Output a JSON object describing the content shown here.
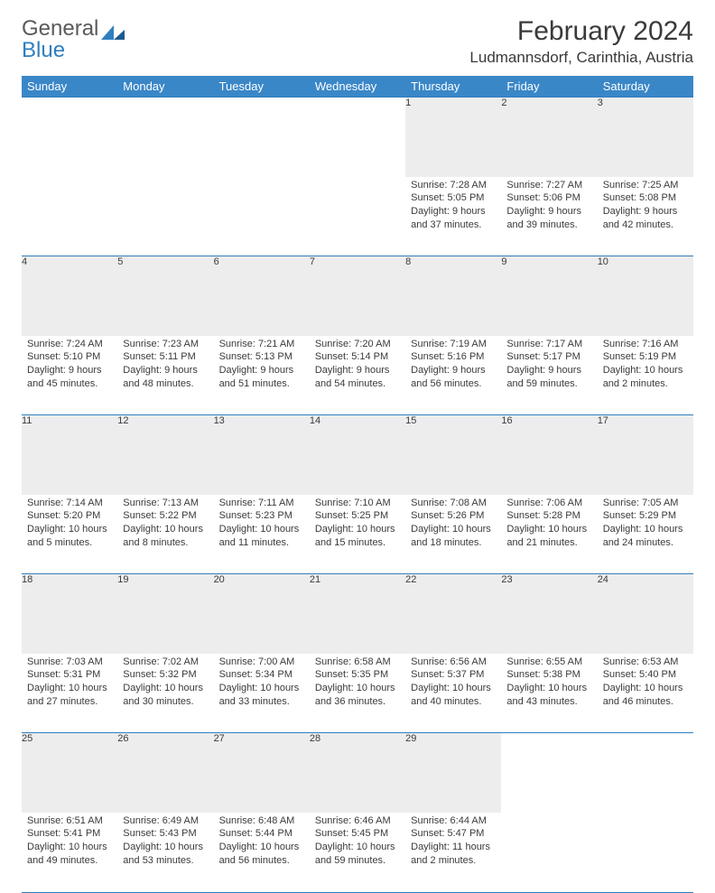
{
  "logo": {
    "text1": "General",
    "text2": "Blue",
    "shape_color": "#2f7fbf"
  },
  "title": "February 2024",
  "location": "Ludmannsdorf, Carinthia, Austria",
  "colors": {
    "header_bg": "#3a87c8",
    "line": "#2f7fbf",
    "daynum_bg": "#ededed"
  },
  "weekdays": [
    "Sunday",
    "Monday",
    "Tuesday",
    "Wednesday",
    "Thursday",
    "Friday",
    "Saturday"
  ],
  "weeks": [
    [
      null,
      null,
      null,
      null,
      {
        "n": "1",
        "sr": "Sunrise: 7:28 AM",
        "ss": "Sunset: 5:05 PM",
        "d1": "Daylight: 9 hours",
        "d2": "and 37 minutes."
      },
      {
        "n": "2",
        "sr": "Sunrise: 7:27 AM",
        "ss": "Sunset: 5:06 PM",
        "d1": "Daylight: 9 hours",
        "d2": "and 39 minutes."
      },
      {
        "n": "3",
        "sr": "Sunrise: 7:25 AM",
        "ss": "Sunset: 5:08 PM",
        "d1": "Daylight: 9 hours",
        "d2": "and 42 minutes."
      }
    ],
    [
      {
        "n": "4",
        "sr": "Sunrise: 7:24 AM",
        "ss": "Sunset: 5:10 PM",
        "d1": "Daylight: 9 hours",
        "d2": "and 45 minutes."
      },
      {
        "n": "5",
        "sr": "Sunrise: 7:23 AM",
        "ss": "Sunset: 5:11 PM",
        "d1": "Daylight: 9 hours",
        "d2": "and 48 minutes."
      },
      {
        "n": "6",
        "sr": "Sunrise: 7:21 AM",
        "ss": "Sunset: 5:13 PM",
        "d1": "Daylight: 9 hours",
        "d2": "and 51 minutes."
      },
      {
        "n": "7",
        "sr": "Sunrise: 7:20 AM",
        "ss": "Sunset: 5:14 PM",
        "d1": "Daylight: 9 hours",
        "d2": "and 54 minutes."
      },
      {
        "n": "8",
        "sr": "Sunrise: 7:19 AM",
        "ss": "Sunset: 5:16 PM",
        "d1": "Daylight: 9 hours",
        "d2": "and 56 minutes."
      },
      {
        "n": "9",
        "sr": "Sunrise: 7:17 AM",
        "ss": "Sunset: 5:17 PM",
        "d1": "Daylight: 9 hours",
        "d2": "and 59 minutes."
      },
      {
        "n": "10",
        "sr": "Sunrise: 7:16 AM",
        "ss": "Sunset: 5:19 PM",
        "d1": "Daylight: 10 hours",
        "d2": "and 2 minutes."
      }
    ],
    [
      {
        "n": "11",
        "sr": "Sunrise: 7:14 AM",
        "ss": "Sunset: 5:20 PM",
        "d1": "Daylight: 10 hours",
        "d2": "and 5 minutes."
      },
      {
        "n": "12",
        "sr": "Sunrise: 7:13 AM",
        "ss": "Sunset: 5:22 PM",
        "d1": "Daylight: 10 hours",
        "d2": "and 8 minutes."
      },
      {
        "n": "13",
        "sr": "Sunrise: 7:11 AM",
        "ss": "Sunset: 5:23 PM",
        "d1": "Daylight: 10 hours",
        "d2": "and 11 minutes."
      },
      {
        "n": "14",
        "sr": "Sunrise: 7:10 AM",
        "ss": "Sunset: 5:25 PM",
        "d1": "Daylight: 10 hours",
        "d2": "and 15 minutes."
      },
      {
        "n": "15",
        "sr": "Sunrise: 7:08 AM",
        "ss": "Sunset: 5:26 PM",
        "d1": "Daylight: 10 hours",
        "d2": "and 18 minutes."
      },
      {
        "n": "16",
        "sr": "Sunrise: 7:06 AM",
        "ss": "Sunset: 5:28 PM",
        "d1": "Daylight: 10 hours",
        "d2": "and 21 minutes."
      },
      {
        "n": "17",
        "sr": "Sunrise: 7:05 AM",
        "ss": "Sunset: 5:29 PM",
        "d1": "Daylight: 10 hours",
        "d2": "and 24 minutes."
      }
    ],
    [
      {
        "n": "18",
        "sr": "Sunrise: 7:03 AM",
        "ss": "Sunset: 5:31 PM",
        "d1": "Daylight: 10 hours",
        "d2": "and 27 minutes."
      },
      {
        "n": "19",
        "sr": "Sunrise: 7:02 AM",
        "ss": "Sunset: 5:32 PM",
        "d1": "Daylight: 10 hours",
        "d2": "and 30 minutes."
      },
      {
        "n": "20",
        "sr": "Sunrise: 7:00 AM",
        "ss": "Sunset: 5:34 PM",
        "d1": "Daylight: 10 hours",
        "d2": "and 33 minutes."
      },
      {
        "n": "21",
        "sr": "Sunrise: 6:58 AM",
        "ss": "Sunset: 5:35 PM",
        "d1": "Daylight: 10 hours",
        "d2": "and 36 minutes."
      },
      {
        "n": "22",
        "sr": "Sunrise: 6:56 AM",
        "ss": "Sunset: 5:37 PM",
        "d1": "Daylight: 10 hours",
        "d2": "and 40 minutes."
      },
      {
        "n": "23",
        "sr": "Sunrise: 6:55 AM",
        "ss": "Sunset: 5:38 PM",
        "d1": "Daylight: 10 hours",
        "d2": "and 43 minutes."
      },
      {
        "n": "24",
        "sr": "Sunrise: 6:53 AM",
        "ss": "Sunset: 5:40 PM",
        "d1": "Daylight: 10 hours",
        "d2": "and 46 minutes."
      }
    ],
    [
      {
        "n": "25",
        "sr": "Sunrise: 6:51 AM",
        "ss": "Sunset: 5:41 PM",
        "d1": "Daylight: 10 hours",
        "d2": "and 49 minutes."
      },
      {
        "n": "26",
        "sr": "Sunrise: 6:49 AM",
        "ss": "Sunset: 5:43 PM",
        "d1": "Daylight: 10 hours",
        "d2": "and 53 minutes."
      },
      {
        "n": "27",
        "sr": "Sunrise: 6:48 AM",
        "ss": "Sunset: 5:44 PM",
        "d1": "Daylight: 10 hours",
        "d2": "and 56 minutes."
      },
      {
        "n": "28",
        "sr": "Sunrise: 6:46 AM",
        "ss": "Sunset: 5:45 PM",
        "d1": "Daylight: 10 hours",
        "d2": "and 59 minutes."
      },
      {
        "n": "29",
        "sr": "Sunrise: 6:44 AM",
        "ss": "Sunset: 5:47 PM",
        "d1": "Daylight: 11 hours",
        "d2": "and 2 minutes."
      },
      null,
      null
    ]
  ]
}
